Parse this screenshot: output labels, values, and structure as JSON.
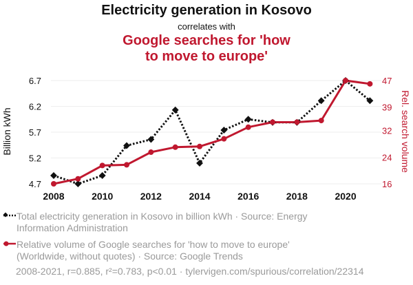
{
  "header": {
    "title": "Electricity generation in Kosovo",
    "connector": "correlates with",
    "subtitle_line1": "Google searches for 'how",
    "subtitle_line2": "to move to europe'"
  },
  "colors": {
    "series1": "#111111",
    "series2": "#c0182f",
    "axis_text": "#111111",
    "legend_text": "#9a9a9a",
    "grid": "#eeeeee"
  },
  "chart_data": {
    "type": "line",
    "x": [
      2008,
      2009,
      2010,
      2011,
      2012,
      2013,
      2014,
      2015,
      2016,
      2017,
      2018,
      2019,
      2020,
      2021
    ],
    "x_ticks": [
      "2008",
      "2010",
      "2012",
      "2014",
      "2016",
      "2018",
      "2020"
    ],
    "xlim": [
      2008,
      2021.3
    ],
    "y_left": {
      "label": "Billion kWh",
      "ticks": [
        "4.7",
        "5.2",
        "5.7",
        "6.2",
        "6.7"
      ],
      "lim": [
        4.7,
        6.7
      ]
    },
    "y_right": {
      "label": "Rel. search volume",
      "ticks": [
        "16",
        "24",
        "32",
        "39",
        "47"
      ],
      "lim": [
        16,
        47
      ]
    },
    "series": [
      {
        "axis": "left",
        "style": "dotted",
        "marker": "diamond",
        "values": [
          4.86,
          4.7,
          4.86,
          5.44,
          5.56,
          6.13,
          5.1,
          5.74,
          5.95,
          5.89,
          5.89,
          6.31,
          6.7,
          6.31
        ]
      },
      {
        "axis": "right",
        "style": "solid",
        "marker": "circle",
        "values": [
          16,
          17.5,
          21.5,
          21.7,
          25.5,
          27.0,
          27.2,
          29.5,
          33.0,
          34.5,
          34.5,
          35.0,
          47.0,
          46.0
        ]
      }
    ]
  },
  "legend": {
    "item1_line1": "Total electricity generation in Kosovo in billion kWh · Source: Energy",
    "item1_line2": "Information Administration",
    "item2_line1": "Relative volume of Google searches for 'how to move to europe'",
    "item2_line2": "(Worldwide, without quotes) · Source: Google Trends"
  },
  "footer": "2008-2021, r=0.885, r²=0.783, p<0.01 · tylervigen.com/spurious/correlation/22314"
}
